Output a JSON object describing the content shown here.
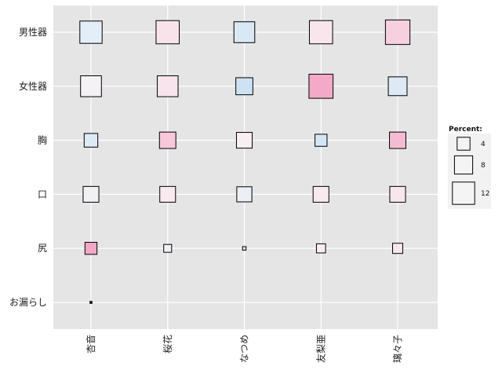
{
  "chart_data": {
    "type": "heatmap",
    "x_categories": [
      "杏音",
      "桜花",
      "なつめ",
      "友梨亜",
      "璃々子"
    ],
    "y_categories": [
      "男性器",
      "女性器",
      "胸",
      "口",
      "尻",
      "お漏らし"
    ],
    "legend": {
      "title": "Percent:",
      "placement": "right",
      "sizes": [
        4,
        8,
        12
      ],
      "labels": [
        "4",
        "8",
        "12"
      ]
    },
    "grid": true,
    "cells": [
      {
        "x": "杏音",
        "y": "男性器",
        "percent": 12.0,
        "color": "#e3eef9"
      },
      {
        "x": "桜花",
        "y": "男性器",
        "percent": 13.0,
        "color": "#f9e3ea"
      },
      {
        "x": "なつめ",
        "y": "男性器",
        "percent": 10.5,
        "color": "#d9e8f5"
      },
      {
        "x": "友梨亜",
        "y": "男性器",
        "percent": 13.0,
        "color": "#f9e6ec"
      },
      {
        "x": "璃々子",
        "y": "男性器",
        "percent": 14.5,
        "color": "#f6d0df"
      },
      {
        "x": "杏音",
        "y": "女性器",
        "percent": 10.5,
        "color": "#f5f2f5"
      },
      {
        "x": "桜花",
        "y": "女性器",
        "percent": 10.5,
        "color": "#f8e4ec"
      },
      {
        "x": "なつめ",
        "y": "女性器",
        "percent": 7.0,
        "color": "#cde2f4"
      },
      {
        "x": "友梨亜",
        "y": "女性器",
        "percent": 14.0,
        "color": "#f4a9c8"
      },
      {
        "x": "璃々子",
        "y": "女性器",
        "percent": 8.5,
        "color": "#dde9f5"
      },
      {
        "x": "杏音",
        "y": "胸",
        "percent": 4.5,
        "color": "#dde9f5"
      },
      {
        "x": "桜花",
        "y": "胸",
        "percent": 6.5,
        "color": "#f6c8da"
      },
      {
        "x": "なつめ",
        "y": "胸",
        "percent": 6.0,
        "color": "#f7eff2"
      },
      {
        "x": "友梨亜",
        "y": "胸",
        "percent": 3.5,
        "color": "#d3e6f6"
      },
      {
        "x": "璃々子",
        "y": "胸",
        "percent": 6.5,
        "color": "#f4bcd3"
      },
      {
        "x": "杏音",
        "y": "口",
        "percent": 6.0,
        "color": "#f1f1f4"
      },
      {
        "x": "桜花",
        "y": "口",
        "percent": 6.0,
        "color": "#f8eaef"
      },
      {
        "x": "なつめ",
        "y": "口",
        "percent": 5.5,
        "color": "#eceff5"
      },
      {
        "x": "友梨亜",
        "y": "口",
        "percent": 6.0,
        "color": "#f8eaef"
      },
      {
        "x": "璃々子",
        "y": "口",
        "percent": 6.0,
        "color": "#f9e5ec"
      },
      {
        "x": "杏音",
        "y": "尻",
        "percent": 3.5,
        "color": "#f2a7c6"
      },
      {
        "x": "桜花",
        "y": "尻",
        "percent": 1.5,
        "color": "#eef1f5"
      },
      {
        "x": "なつめ",
        "y": "尻",
        "percent": 0.3,
        "color": "#dce8f5"
      },
      {
        "x": "友梨亜",
        "y": "尻",
        "percent": 2.0,
        "color": "#f8eef2"
      },
      {
        "x": "璃々子",
        "y": "尻",
        "percent": 2.5,
        "color": "#f9e6ed"
      },
      {
        "x": "杏音",
        "y": "お漏らし",
        "percent": 0.1,
        "color": "#222222"
      }
    ]
  }
}
